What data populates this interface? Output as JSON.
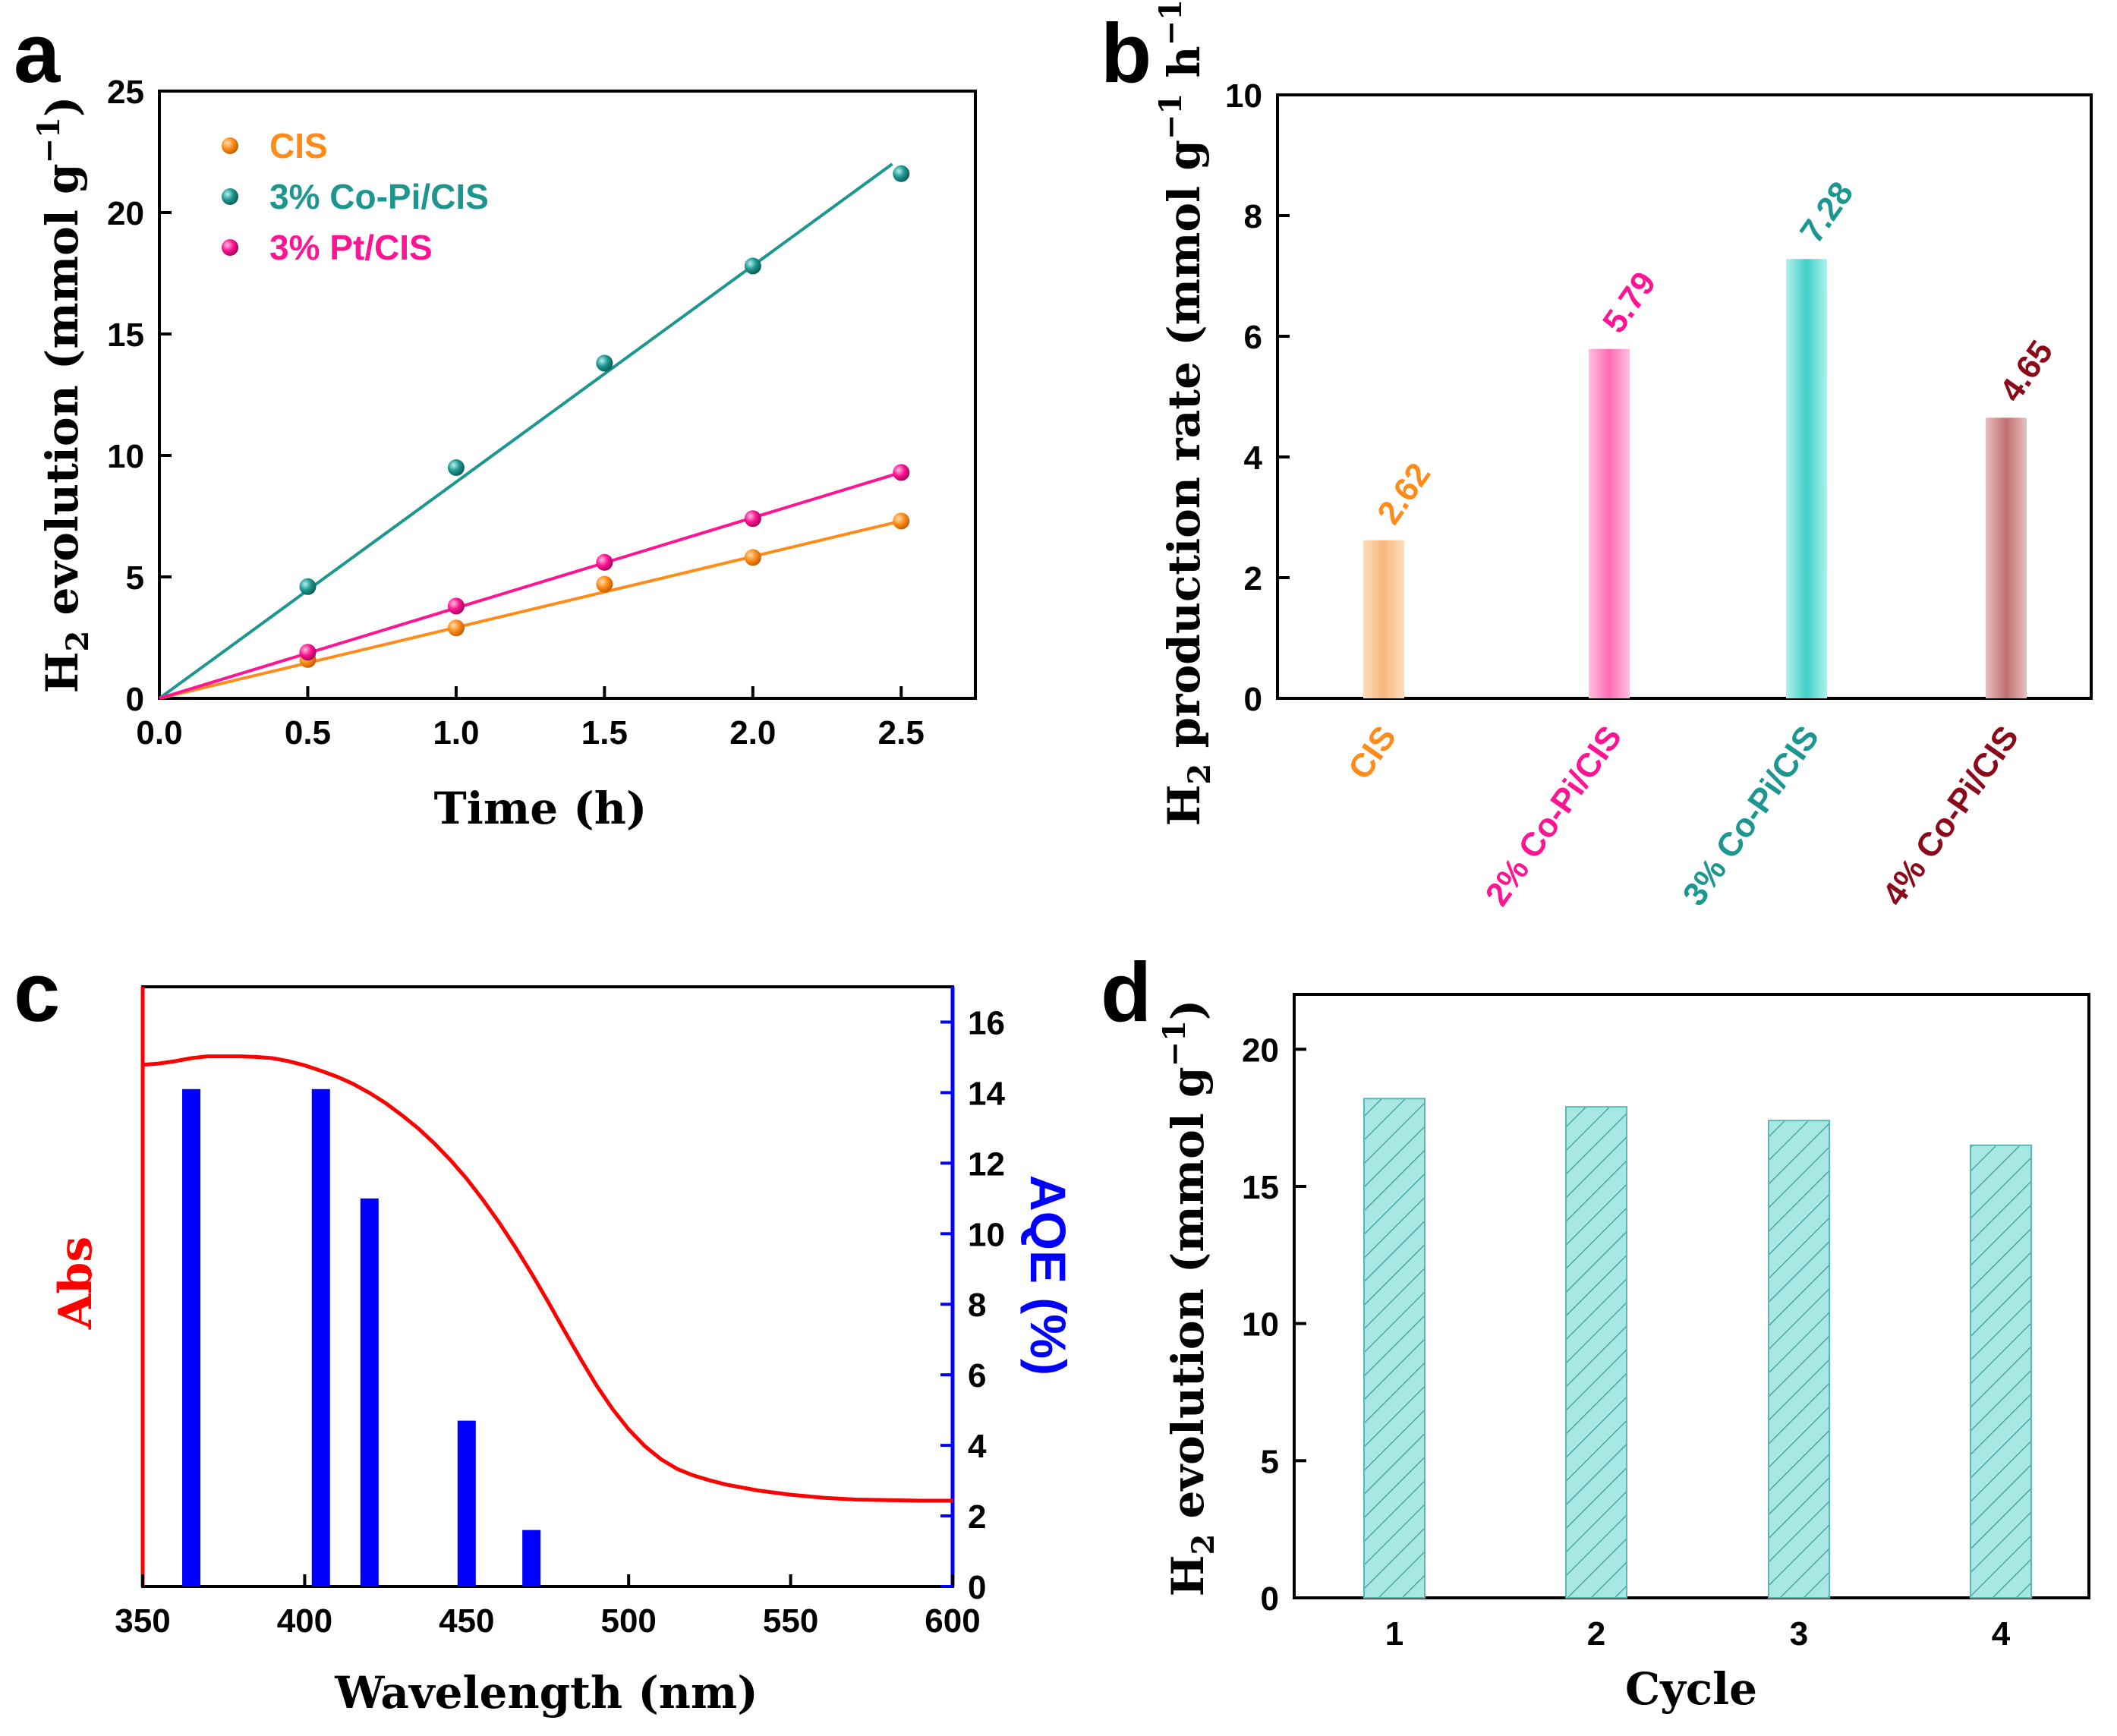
{
  "colors": {
    "orange": "#FF8C1A",
    "teal": "#1E9690",
    "pink": "#FF1493",
    "maroon": "#8B0A1A",
    "red": "#FF0000",
    "blue": "#0000FF",
    "cyan_bar": "#A8E8E4"
  },
  "chart_data": [
    {
      "panel": "a",
      "type": "scatter",
      "xlabel": "Time (h)",
      "ylabel": "H2 evolution (mmol g-1)",
      "ylabel_parts": {
        "main": "H",
        "sub": "2",
        "rest": " evolution (mmol g",
        "sup": "−1",
        "end": ")"
      },
      "xlim": [
        0,
        2.75
      ],
      "ylim": [
        0,
        25
      ],
      "xticks": [
        "0.0",
        "0.5",
        "1.0",
        "1.5",
        "2.0",
        "2.5"
      ],
      "xtick_values": [
        0,
        0.5,
        1.0,
        1.5,
        2.0,
        2.5
      ],
      "yticks": [
        "0",
        "5",
        "10",
        "15",
        "20",
        "25"
      ],
      "ytick_values": [
        0,
        5,
        10,
        15,
        20,
        25
      ],
      "legend_position": "top-left",
      "series": [
        {
          "name": "CIS",
          "color": "#FF8C1A",
          "x": [
            0.5,
            1.0,
            1.5,
            2.0,
            2.5
          ],
          "y": [
            1.6,
            2.9,
            4.7,
            5.8,
            7.3
          ],
          "fit": [
            [
              0,
              0
            ],
            [
              2.5,
              7.3
            ]
          ]
        },
        {
          "name": "3% Co-Pi/CIS",
          "color": "#1E9690",
          "x": [
            0.5,
            1.0,
            1.5,
            2.0,
            2.5
          ],
          "y": [
            4.6,
            9.5,
            13.8,
            17.8,
            21.6
          ],
          "fit": [
            [
              0,
              0
            ],
            [
              2.47,
              22.0
            ]
          ]
        },
        {
          "name": "3% Pt/CIS",
          "color": "#FF1493",
          "x": [
            0.5,
            1.0,
            1.5,
            2.0,
            2.5
          ],
          "y": [
            1.9,
            3.8,
            5.6,
            7.4,
            9.3
          ],
          "fit": [
            [
              0,
              0
            ],
            [
              2.5,
              9.3
            ]
          ]
        }
      ]
    },
    {
      "panel": "b",
      "type": "bar",
      "xlabel": "",
      "ylabel": "H2 production rate (mmol g-1 h-1)",
      "ylabel_parts": {
        "main": "H",
        "sub": "2",
        "rest": " production rate (mmol g",
        "sup": "−1",
        "mid": " h",
        "sup2": "−1",
        "end": ")"
      },
      "ylim": [
        0,
        10
      ],
      "yticks": [
        "0",
        "2",
        "4",
        "6",
        "8",
        "10"
      ],
      "ytick_values": [
        0,
        2,
        4,
        6,
        8,
        10
      ],
      "categories": [
        "CIS",
        "2% Co-Pi/CIS",
        "3% Co-Pi/CIS",
        "4% Co-Pi/CIS"
      ],
      "values": [
        2.62,
        5.79,
        7.28,
        4.65
      ],
      "value_labels": [
        "2.62",
        "5.79",
        "7.28",
        "4.65"
      ],
      "bar_colors": [
        "#F9B77A",
        "#FF69B4",
        "#40D0C8",
        "#C07070"
      ],
      "label_colors": [
        "#FF8C1A",
        "#FF1493",
        "#1E9690",
        "#8B0A1A"
      ]
    },
    {
      "panel": "c",
      "type": "bar",
      "xlabel": "Wavelength (nm)",
      "ylabel_left": "Abs",
      "ylabel_right": "AQE (%)",
      "xlim": [
        350,
        600
      ],
      "xticks": [
        "350",
        "400",
        "450",
        "500",
        "550",
        "600"
      ],
      "xtick_values": [
        350,
        400,
        450,
        500,
        550,
        600
      ],
      "ylim_right": [
        0,
        17
      ],
      "yticks_right": [
        "0",
        "2",
        "4",
        "6",
        "8",
        "10",
        "12",
        "14",
        "16"
      ],
      "ytick_values_right": [
        0,
        2,
        4,
        6,
        8,
        10,
        12,
        14,
        16
      ],
      "aqe_bars": {
        "wavelength": [
          365,
          405,
          420,
          450,
          470
        ],
        "aqe": [
          14.1,
          14.1,
          11.0,
          4.7,
          1.6
        ]
      },
      "abs_curve": {
        "x": [
          350,
          355,
          360,
          365,
          370,
          375,
          380,
          385,
          390,
          395,
          400,
          405,
          410,
          415,
          420,
          425,
          430,
          435,
          440,
          445,
          450,
          455,
          460,
          465,
          470,
          475,
          480,
          485,
          490,
          495,
          500,
          505,
          510,
          515,
          520,
          525,
          530,
          540,
          550,
          560,
          570,
          580,
          590,
          600
        ],
        "y": [
          0.87,
          0.872,
          0.876,
          0.881,
          0.884,
          0.884,
          0.884,
          0.883,
          0.881,
          0.876,
          0.869,
          0.86,
          0.85,
          0.838,
          0.823,
          0.806,
          0.786,
          0.764,
          0.739,
          0.711,
          0.68,
          0.645,
          0.607,
          0.566,
          0.522,
          0.476,
          0.428,
          0.381,
          0.336,
          0.296,
          0.262,
          0.234,
          0.212,
          0.196,
          0.185,
          0.177,
          0.17,
          0.16,
          0.153,
          0.148,
          0.145,
          0.144,
          0.143,
          0.143
        ]
      }
    },
    {
      "panel": "d",
      "type": "bar",
      "xlabel": "Cycle",
      "ylabel": "H2 evolution (mmol g-1)",
      "ylabel_parts": {
        "main": "H",
        "sub": "2",
        "rest": " evolution (mmol g",
        "sup": "−1",
        "end": ")"
      },
      "ylim": [
        0,
        22
      ],
      "yticks": [
        "0",
        "5",
        "10",
        "15",
        "20"
      ],
      "ytick_values": [
        0,
        5,
        10,
        15,
        20
      ],
      "categories": [
        "1",
        "2",
        "3",
        "4"
      ],
      "values": [
        18.2,
        17.9,
        17.4,
        16.5
      ],
      "pattern": "diagonal-hatch"
    }
  ],
  "panel_labels": [
    "a",
    "b",
    "c",
    "d"
  ]
}
